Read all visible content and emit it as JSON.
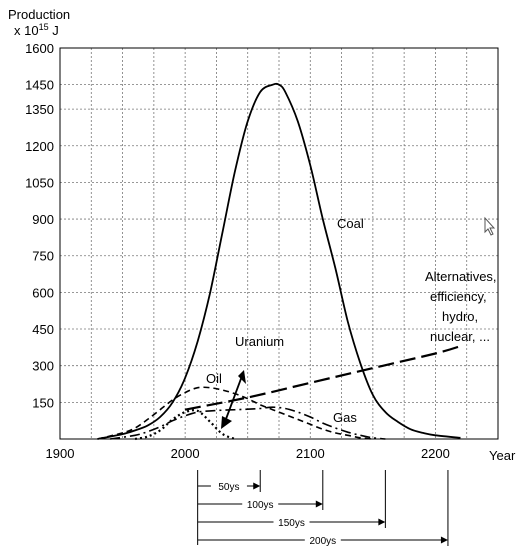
{
  "chart_data": {
    "type": "line",
    "ylabel_line1": "Production",
    "ylabel_line2_prefix": "x 10",
    "ylabel_line2_exp": "15",
    "ylabel_line2_unit": " J",
    "xlabel": "Year",
    "xlim": [
      1900,
      2250
    ],
    "ylim": [
      0,
      1600
    ],
    "xticks": [
      1900,
      2000,
      2100,
      2200
    ],
    "yticks": [
      150,
      300,
      450,
      600,
      750,
      900,
      1050,
      1200,
      1350,
      1450,
      1600
    ],
    "grid": true,
    "series": [
      {
        "name": "Coal",
        "style": "solid",
        "x": [
          1930,
          1950,
          1960,
          1970,
          1980,
          1990,
          2000,
          2010,
          2020,
          2030,
          2040,
          2050,
          2060,
          2070,
          2075,
          2080,
          2090,
          2100,
          2110,
          2120,
          2130,
          2140,
          2150,
          2160,
          2170,
          2180,
          2190,
          2200,
          2220
        ],
        "y": [
          0,
          20,
          35,
          55,
          90,
          150,
          250,
          400,
          600,
          850,
          1100,
          1300,
          1420,
          1450,
          1450,
          1420,
          1300,
          1120,
          900,
          700,
          480,
          310,
          180,
          110,
          70,
          40,
          25,
          15,
          5
        ]
      },
      {
        "name": "Oil",
        "style": "dashed",
        "x": [
          1930,
          1950,
          1960,
          1970,
          1980,
          1990,
          2000,
          2010,
          2020,
          2030,
          2040,
          2050,
          2060,
          2070,
          2080,
          2090,
          2100,
          2110,
          2120,
          2130,
          2140,
          2150
        ],
        "y": [
          0,
          25,
          45,
          80,
          120,
          160,
          190,
          210,
          210,
          200,
          185,
          165,
          140,
          120,
          100,
          80,
          60,
          40,
          25,
          15,
          5,
          0
        ]
      },
      {
        "name": "Gas",
        "style": "dashdot",
        "x": [
          1940,
          1960,
          1970,
          1980,
          1990,
          2000,
          2010,
          2020,
          2030,
          2040,
          2050,
          2060,
          2070,
          2080,
          2090,
          2100,
          2110,
          2120,
          2130,
          2140,
          2150,
          2160
        ],
        "y": [
          0,
          15,
          30,
          50,
          75,
          95,
          110,
          115,
          118,
          120,
          122,
          125,
          130,
          125,
          110,
          90,
          65,
          45,
          28,
          15,
          5,
          0
        ]
      },
      {
        "name": "Uranium",
        "style": "dotted",
        "x": [
          1960,
          1970,
          1980,
          1990,
          2000,
          2010,
          2020,
          2030,
          2040
        ],
        "y": [
          0,
          10,
          35,
          80,
          110,
          115,
          70,
          20,
          0
        ]
      },
      {
        "name": "Alternatives, efficiency, hydro, nuclear, ...",
        "style": "longdash",
        "x": [
          2000,
          2050,
          2100,
          2150,
          2200,
          2220
        ],
        "y": [
          120,
          170,
          230,
          290,
          350,
          380
        ]
      }
    ],
    "annotations": {
      "coal": "Coal",
      "oil": "Oil",
      "gas": "Gas",
      "uranium": "Uranium",
      "alternatives": [
        "Alternatives,",
        "efficiency,",
        "hydro,",
        "nuclear, ..."
      ]
    },
    "spans": [
      {
        "label": "50ys",
        "start": 2010,
        "end": 2060
      },
      {
        "label": "100ys",
        "start": 2010,
        "end": 2110
      },
      {
        "label": "150ys",
        "start": 2010,
        "end": 2160
      },
      {
        "label": "200ys",
        "start": 2010,
        "end": 2210
      }
    ]
  }
}
